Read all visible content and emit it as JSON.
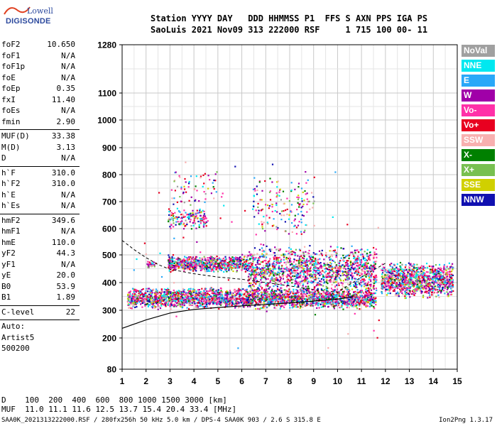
{
  "logo": {
    "line1": "Lowell",
    "line2": "DIGISONDE"
  },
  "header": {
    "line1": "Station YYYY DAY   DDD HHMMSS P1  FFS S AXN PPS IGA PS",
    "line2": "SaoLuis 2021 Nov09 313 222000 RSF     1 715 100 00- 11"
  },
  "params": [
    [
      {
        "k": "foF2",
        "v": "10.650"
      },
      {
        "k": "foF1",
        "v": "N/A"
      },
      {
        "k": "foF1p",
        "v": "N/A"
      },
      {
        "k": "foE",
        "v": "N/A"
      },
      {
        "k": "foEp",
        "v": "0.35"
      },
      {
        "k": "fxI",
        "v": "11.40"
      },
      {
        "k": "foEs",
        "v": "N/A"
      },
      {
        "k": "fmin",
        "v": "2.90"
      }
    ],
    [
      {
        "k": "MUF(D)",
        "v": "33.38"
      },
      {
        "k": "M(D)",
        "v": "3.13"
      },
      {
        "k": "D",
        "v": "N/A"
      }
    ],
    [
      {
        "k": "h`F",
        "v": "310.0"
      },
      {
        "k": "h`F2",
        "v": "310.0"
      },
      {
        "k": "h`E",
        "v": "N/A"
      },
      {
        "k": "h`Es",
        "v": "N/A"
      }
    ],
    [
      {
        "k": "hmF2",
        "v": "349.6"
      },
      {
        "k": "hmF1",
        "v": "N/A"
      },
      {
        "k": "hmE",
        "v": "110.0"
      },
      {
        "k": "yF2",
        "v": "44.3"
      },
      {
        "k": "yF1",
        "v": "N/A"
      },
      {
        "k": "yE",
        "v": "20.0"
      },
      {
        "k": "B0",
        "v": "53.9"
      },
      {
        "k": "B1",
        "v": "1.89"
      }
    ],
    [
      {
        "k": "C-level",
        "v": "22"
      }
    ]
  ],
  "auto": [
    "Auto:",
    "Artist5",
    "500200"
  ],
  "legend": [
    {
      "label": "NoVal",
      "color": "#a0a0a0"
    },
    {
      "label": "NNE",
      "color": "#00e8f0"
    },
    {
      "label": "E",
      "color": "#2aa8f8"
    },
    {
      "label": "W",
      "color": "#a000a8"
    },
    {
      "label": "Vo-",
      "color": "#ff30a8"
    },
    {
      "label": "Vo+",
      "color": "#e80020"
    },
    {
      "label": "SSW",
      "color": "#f8b0b0"
    },
    {
      "label": "X-",
      "color": "#008000"
    },
    {
      "label": "X+",
      "color": "#78c050"
    },
    {
      "label": "SSE",
      "color": "#d0d000"
    },
    {
      "label": "NNW",
      "color": "#1010b0"
    }
  ],
  "footer": {
    "d_line": "D    100  200  400  600  800 1000 1500 3000 [km]",
    "muf_line": "MUF  11.0 11.1 11.6 12.5 13.7 15.4 20.4 33.4 [MHz]",
    "file_line": "SAA0K_2021313222000.RSF / 280fx256h 50 kHz 5.0 km / DPS-4 SAA0K 903 / 2.6 S 315.8 E",
    "version": "Ion2Png 1.3.17"
  },
  "chart_data": {
    "type": "scatter",
    "x_ticks": [
      "1",
      "2",
      "3",
      "4",
      "5",
      "6",
      "7",
      "8",
      "9",
      "10",
      "11",
      "12",
      "13",
      "14",
      "15"
    ],
    "y_ticks": [
      "80",
      "200",
      "300",
      "400",
      "500",
      "600",
      "700",
      "800",
      "900",
      "1000",
      "1100",
      "1280"
    ],
    "xlim": [
      1,
      15
    ],
    "ylim": [
      80,
      1280
    ],
    "y_scale": "nonlinear",
    "grid": true,
    "profile_curve": [
      [
        1.0,
        235
      ],
      [
        2.0,
        265
      ],
      [
        3.0,
        290
      ],
      [
        4.0,
        303
      ],
      [
        5.0,
        310
      ],
      [
        6.0,
        316
      ],
      [
        7.0,
        321
      ],
      [
        8.0,
        327
      ],
      [
        9.0,
        333
      ],
      [
        10.0,
        340
      ],
      [
        10.65,
        349.6
      ]
    ],
    "dashed_curve": [
      [
        1.0,
        555
      ],
      [
        1.5,
        520
      ],
      [
        2.0,
        490
      ],
      [
        2.5,
        465
      ],
      [
        3.0,
        448
      ],
      [
        3.5,
        440
      ],
      [
        4.0,
        432
      ],
      [
        5.0,
        420
      ],
      [
        6.0,
        412
      ],
      [
        7.0,
        400
      ],
      [
        8.0,
        388
      ],
      [
        9.0,
        375
      ],
      [
        10.0,
        365
      ],
      [
        11.0,
        420
      ],
      [
        12.0,
        470
      ]
    ],
    "echo_regions": [
      {
        "x": [
          1.2,
          11.6
        ],
        "y": [
          305,
          385
        ],
        "n": 2600
      },
      {
        "x": [
          2.9,
          6.2
        ],
        "y": [
          440,
          500
        ],
        "n": 750
      },
      {
        "x": [
          6.2,
          11.6
        ],
        "y": [
          360,
          540
        ],
        "n": 1400
      },
      {
        "x": [
          11.8,
          14.8
        ],
        "y": [
          345,
          480
        ],
        "n": 1100
      },
      {
        "x": [
          2.9,
          4.5
        ],
        "y": [
          600,
          680
        ],
        "n": 160
      },
      {
        "x": [
          6.4,
          9.0
        ],
        "y": [
          560,
          820
        ],
        "n": 160
      },
      {
        "x": [
          3.0,
          5.2
        ],
        "y": [
          680,
          830
        ],
        "n": 60
      },
      {
        "x": [
          2.0,
          2.4
        ],
        "y": [
          455,
          480
        ],
        "n": 30
      },
      {
        "x": [
          1.3,
          11.8
        ],
        "y": [
          90,
          950
        ],
        "n": 80
      }
    ]
  }
}
